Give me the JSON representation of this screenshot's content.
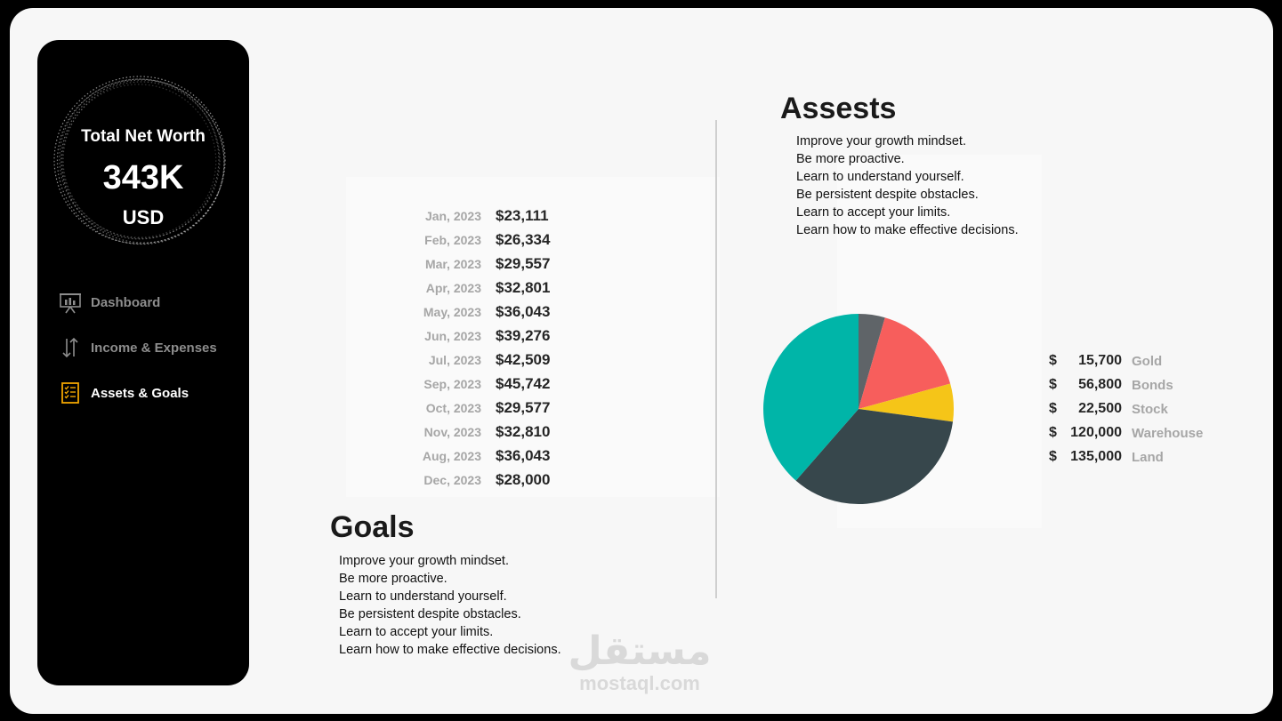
{
  "net_worth": {
    "title": "Total Net Worth",
    "value": "343K",
    "unit": "USD"
  },
  "nav": [
    {
      "label": "Dashboard",
      "icon": "presentation-chart-icon",
      "active": false
    },
    {
      "label": "Income & Expenses",
      "icon": "up-down-arrows-icon",
      "active": false
    },
    {
      "label": "Assets & Goals",
      "icon": "checklist-icon",
      "active": true
    }
  ],
  "monthly": [
    {
      "month": "Jan, 2023",
      "value": "$23,111"
    },
    {
      "month": "Feb, 2023",
      "value": "$26,334"
    },
    {
      "month": "Mar, 2023",
      "value": "$29,557"
    },
    {
      "month": "Apr, 2023",
      "value": "$32,801"
    },
    {
      "month": "May, 2023",
      "value": "$36,043"
    },
    {
      "month": "Jun, 2023",
      "value": "$39,276"
    },
    {
      "month": "Jul, 2023",
      "value": "$42,509"
    },
    {
      "month": "Sep, 2023",
      "value": "$45,742"
    },
    {
      "month": "Oct, 2023",
      "value": "$29,577"
    },
    {
      "month": "Nov, 2023",
      "value": "$32,810"
    },
    {
      "month": "Aug, 2023",
      "value": "$36,043"
    },
    {
      "month": "Dec, 2023",
      "value": "$28,000"
    }
  ],
  "goals": {
    "heading": "Goals",
    "items": [
      "Improve your growth mindset.",
      "Be more proactive.",
      "Learn to understand yourself.",
      "Be persistent despite obstacles.",
      "Learn to accept your limits.",
      "Learn how to make effective decisions."
    ]
  },
  "assets": {
    "heading": "Assests",
    "items": [
      "Improve your growth mindset.",
      "Be more proactive.",
      "Learn to understand yourself.",
      "Be persistent despite obstacles.",
      "Learn to accept your limits.",
      "Learn how to make effective decisions."
    ],
    "currency_symbol": "$",
    "legend": [
      {
        "amount": "15,700",
        "name": "Gold"
      },
      {
        "amount": "56,800",
        "name": "Bonds"
      },
      {
        "amount": "22,500",
        "name": "Stock"
      },
      {
        "amount": "120,000",
        "name": "Warehouse"
      },
      {
        "amount": "135,000",
        "name": "Land"
      }
    ]
  },
  "chart_data": {
    "type": "pie",
    "categories": [
      "Gold",
      "Bonds",
      "Stock",
      "Warehouse",
      "Land"
    ],
    "values": [
      15700,
      56800,
      22500,
      120000,
      135000
    ],
    "colors": [
      "#5f6468",
      "#f75e5c",
      "#f5c518",
      "#37474c",
      "#00b5a8"
    ],
    "start": "12 o'clock, clockwise"
  },
  "watermark": {
    "arabic": "مستقل",
    "latin": "mostaql.com"
  }
}
